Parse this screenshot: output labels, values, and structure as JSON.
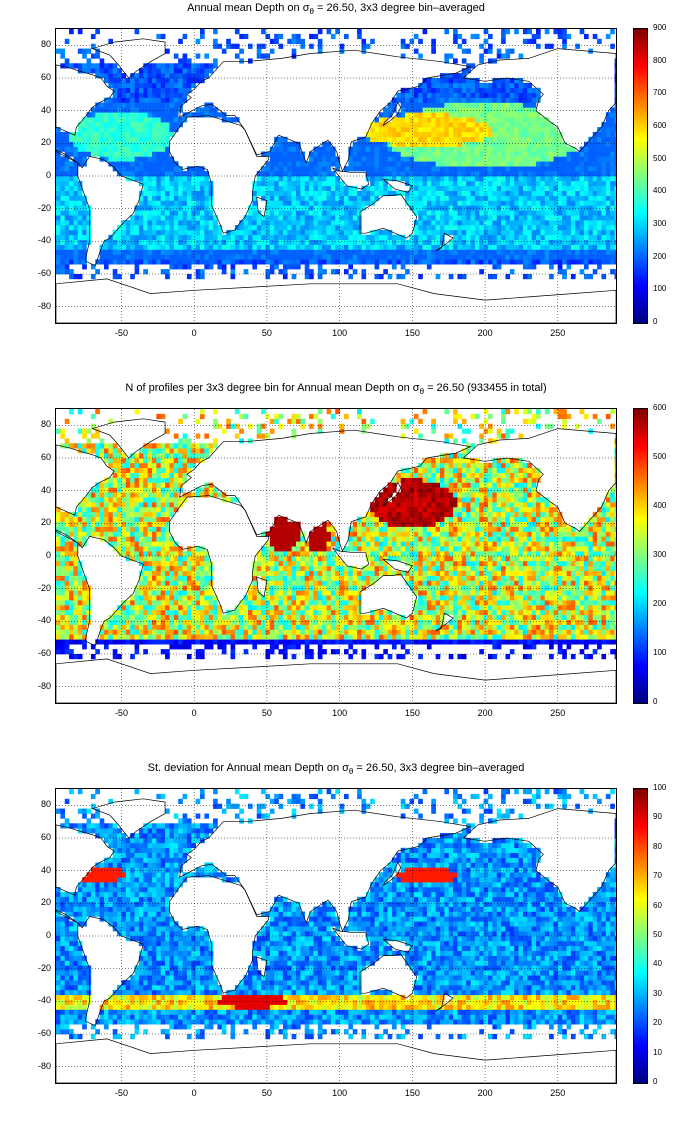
{
  "panels": [
    {
      "title_pre": "Annual mean Depth on ",
      "title_sigma": "σ",
      "title_sub": "θ",
      "title_post": " = 26.50, 3x3 degree bin–averaged",
      "variable": "mean-depth",
      "colorbar": {
        "min": 0,
        "max": 900,
        "ticks": [
          "900",
          "800",
          "700",
          "600",
          "500",
          "400",
          "300",
          "200",
          "100",
          "0"
        ]
      }
    },
    {
      "title_pre": "N of profiles per 3x3 degree bin for Annual mean Depth on ",
      "title_sigma": "σ",
      "title_sub": "θ",
      "title_post": " = 26.50 (933455 in total)",
      "variable": "profile-count",
      "colorbar": {
        "min": 0,
        "max": 600,
        "ticks": [
          "600",
          "500",
          "400",
          "300",
          "200",
          "100",
          "0"
        ]
      }
    },
    {
      "title_pre": "St. deviation for Annual mean Depth on ",
      "title_sigma": "σ",
      "title_sub": "θ",
      "title_post": " = 26.50, 3x3 degree bin–averaged",
      "variable": "std-deviation",
      "colorbar": {
        "min": 0,
        "max": 100,
        "ticks": [
          "100",
          "90",
          "80",
          "70",
          "60",
          "50",
          "40",
          "30",
          "20",
          "10",
          "0"
        ]
      }
    }
  ],
  "axes": {
    "xlim": [
      -95,
      290
    ],
    "ylim": [
      -90,
      90
    ],
    "xticks": [
      "-50",
      "0",
      "50",
      "100",
      "150",
      "200",
      "250"
    ],
    "yticks": [
      "80",
      "60",
      "40",
      "20",
      "0",
      "-20",
      "-40",
      "-60",
      "-80"
    ]
  },
  "colormap": "jet",
  "grid": "dotted"
}
